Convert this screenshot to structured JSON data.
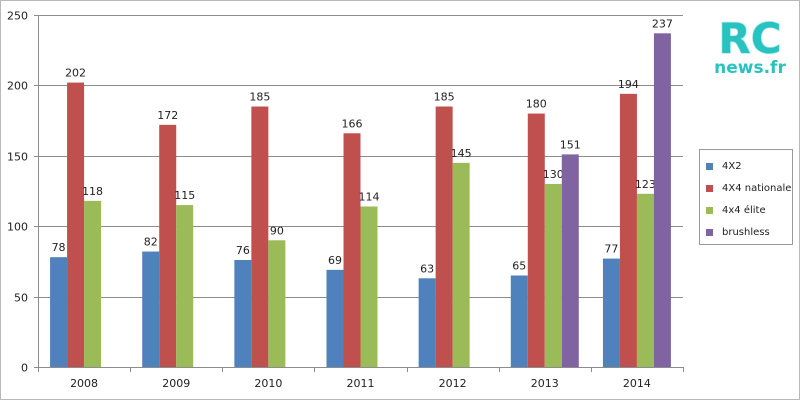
{
  "chart_data": {
    "type": "bar",
    "categories": [
      "2008",
      "2009",
      "2010",
      "2011",
      "2012",
      "2013",
      "2014"
    ],
    "series": [
      {
        "name": "4X2",
        "color": "#4f81bd",
        "values": [
          78,
          82,
          76,
          69,
          63,
          65,
          77
        ]
      },
      {
        "name": "4X4 nationale",
        "color": "#c0504d",
        "values": [
          202,
          172,
          185,
          166,
          185,
          180,
          194
        ]
      },
      {
        "name": "4x4 élite",
        "color": "#9bbb59",
        "values": [
          118,
          115,
          90,
          114,
          145,
          130,
          123
        ]
      },
      {
        "name": "brushless",
        "color": "#8064a2",
        "values": [
          null,
          null,
          null,
          null,
          null,
          151,
          237
        ]
      }
    ],
    "yticks": [
      0,
      50,
      100,
      150,
      200,
      250
    ],
    "ylim": [
      0,
      250
    ],
    "grid": true,
    "legend_position": "right",
    "data_labels": true
  },
  "logo": {
    "line1": "RC",
    "line2": "news.fr",
    "color": "#28c3c0"
  }
}
